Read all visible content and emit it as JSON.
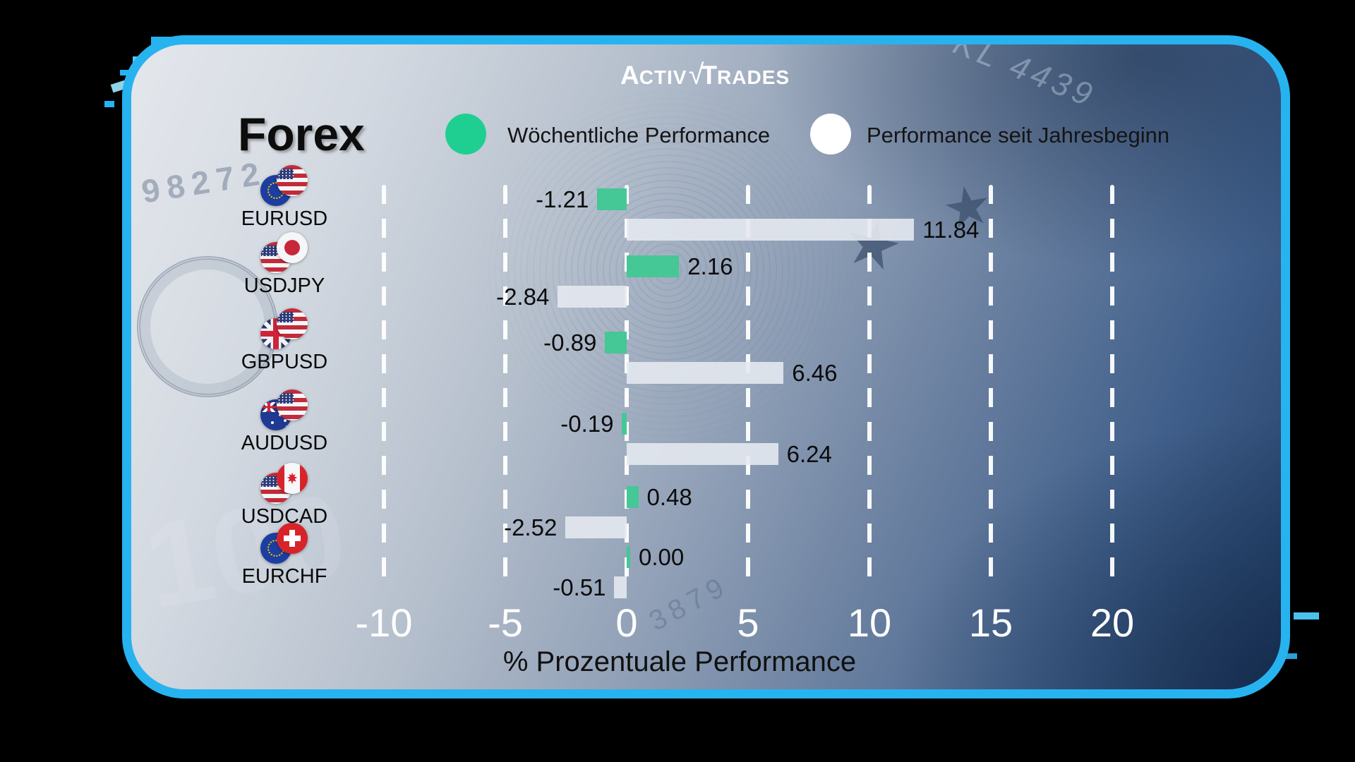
{
  "brand": {
    "parts": [
      "A",
      "CTIV",
      "√",
      "T",
      "RADES"
    ],
    "name": "ActivTrades"
  },
  "title": "Forex",
  "legend": [
    {
      "label": "Wöchentliche Performance",
      "color": "#1fcf92",
      "swatch": "green-circle"
    },
    {
      "label": "Performance seit Jahresbeginn",
      "color": "#ffffff",
      "swatch": "white-circle"
    }
  ],
  "chart_data": {
    "type": "bar",
    "orientation": "horizontal",
    "categories": [
      "EURUSD",
      "USDJPY",
      "GBPUSD",
      "AUDUSD",
      "USDCAD",
      "EURCHF"
    ],
    "flags": [
      [
        "eu",
        "us"
      ],
      [
        "us",
        "jp"
      ],
      [
        "gb",
        "us"
      ],
      [
        "au",
        "us"
      ],
      [
        "us",
        "ca"
      ],
      [
        "eu",
        "ch"
      ]
    ],
    "series": [
      {
        "name": "Wöchentliche Performance",
        "color": "#45c796",
        "values": [
          -1.21,
          2.16,
          -0.89,
          -0.19,
          0.48,
          0.0
        ],
        "labels": [
          "-1.21",
          "2.16",
          "-0.89",
          "-0.19",
          "0.48",
          "0.00"
        ]
      },
      {
        "name": "Performance seit Jahresbeginn",
        "color": "rgba(228,233,239,0.9)",
        "values": [
          11.84,
          -2.84,
          6.46,
          6.24,
          -2.52,
          -0.51
        ],
        "labels": [
          "11.84",
          "-2.84",
          "6.46",
          "6.24",
          "-2.52",
          "-0.51"
        ]
      }
    ],
    "xticks": [
      -10,
      -5,
      0,
      5,
      10,
      15,
      20
    ],
    "xlim": [
      -12.5,
      22.5
    ],
    "xlabel": "% Prozentuale Performance",
    "grid": "vertical-dashed-white",
    "value_label_color": "#0b0b0b",
    "tick_label_color": "#ffffff"
  },
  "colors": {
    "card_border": "#27b3ef",
    "bar_green": "#45c796",
    "bar_white": "#e4e9ef"
  },
  "background_art": {
    "serial_left": "98272",
    "serial_right": "KL 4439",
    "star": "★",
    "euro_number": "100",
    "faint_digits": "3879"
  }
}
